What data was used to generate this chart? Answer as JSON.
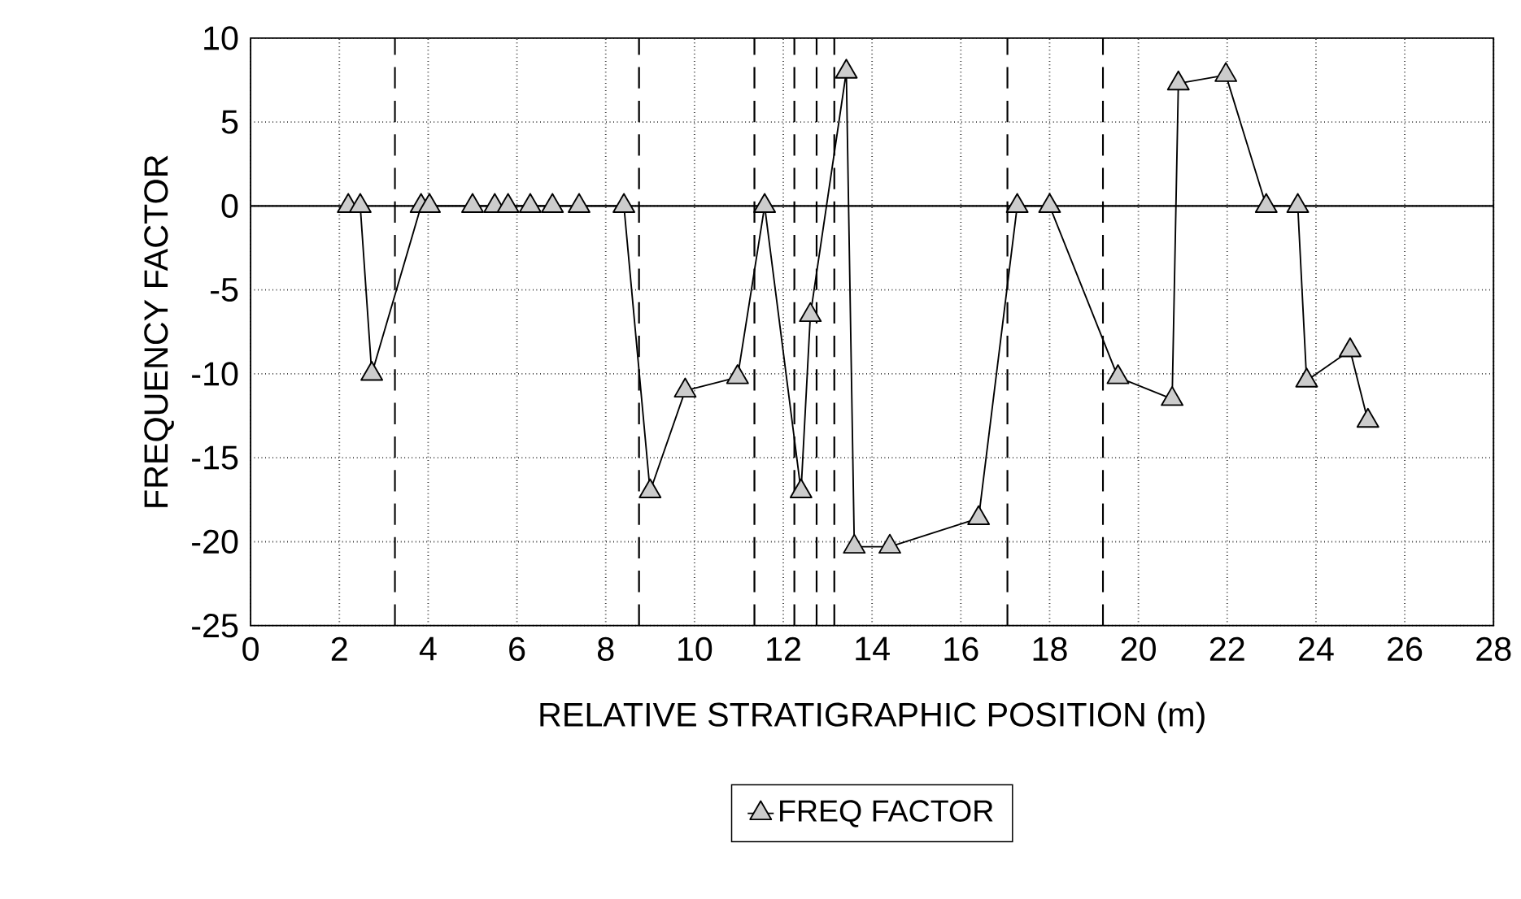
{
  "chart_data": {
    "type": "line",
    "xlabel": "RELATIVE STRATIGRAPHIC POSITION (m)",
    "ylabel": "FREQUENCY FACTOR",
    "series": [
      {
        "name": "FREQ FACTOR",
        "color": "#000000",
        "x": [
          2.2,
          2.47,
          2.73,
          3.84,
          4.03,
          5.0,
          5.5,
          5.8,
          6.3,
          6.8,
          7.4,
          8.41,
          9.0,
          9.79,
          10.97,
          11.58,
          12.4,
          12.61,
          13.42,
          13.6,
          14.4,
          16.4,
          17.27,
          18.0,
          19.54,
          20.76,
          20.9,
          21.97,
          22.88,
          23.59,
          23.79,
          24.77,
          25.17
        ],
        "values": [
          0,
          0,
          -10,
          0,
          0,
          0,
          0,
          0,
          0,
          0,
          0,
          0,
          -17,
          -11,
          -10.2,
          0,
          -17,
          -6.5,
          8,
          -20.3,
          -20.3,
          -18.6,
          0,
          0,
          -10.2,
          -11.5,
          7.3,
          7.8,
          0,
          0,
          -10.4,
          -8.6,
          -12.8
        ]
      }
    ],
    "xlim": [
      0,
      28
    ],
    "ylim": [
      -25,
      10
    ],
    "xticks": [
      0,
      2,
      4,
      6,
      8,
      10,
      12,
      14,
      16,
      18,
      20,
      22,
      24,
      26,
      28
    ],
    "yticks": [
      -25,
      -20,
      -15,
      -10,
      -5,
      0,
      5,
      10
    ],
    "ref_lines": [
      {
        "axis": "y",
        "value": 0,
        "color": "#000000",
        "line_style": "solid"
      },
      {
        "axis": "x",
        "value": 3.25,
        "color": "#000000",
        "line_style": "dashed"
      },
      {
        "axis": "x",
        "value": 8.75,
        "color": "#000000",
        "line_style": "dashed"
      },
      {
        "axis": "x",
        "value": 11.35,
        "color": "#000000",
        "line_style": "dashed"
      },
      {
        "axis": "x",
        "value": 12.25,
        "color": "#000000",
        "line_style": "dashed"
      },
      {
        "axis": "x",
        "value": 12.75,
        "color": "#000000",
        "line_style": "dashed"
      },
      {
        "axis": "x",
        "value": 13.15,
        "color": "#000000",
        "line_style": "dashed"
      },
      {
        "axis": "x",
        "value": 17.05,
        "color": "#000000",
        "line_style": "dashed"
      },
      {
        "axis": "x",
        "value": 19.2,
        "color": "#000000",
        "line_style": "dashed"
      }
    ],
    "grid": true,
    "legend": "bottom",
    "marker": "triangle",
    "line_style": "solid"
  }
}
